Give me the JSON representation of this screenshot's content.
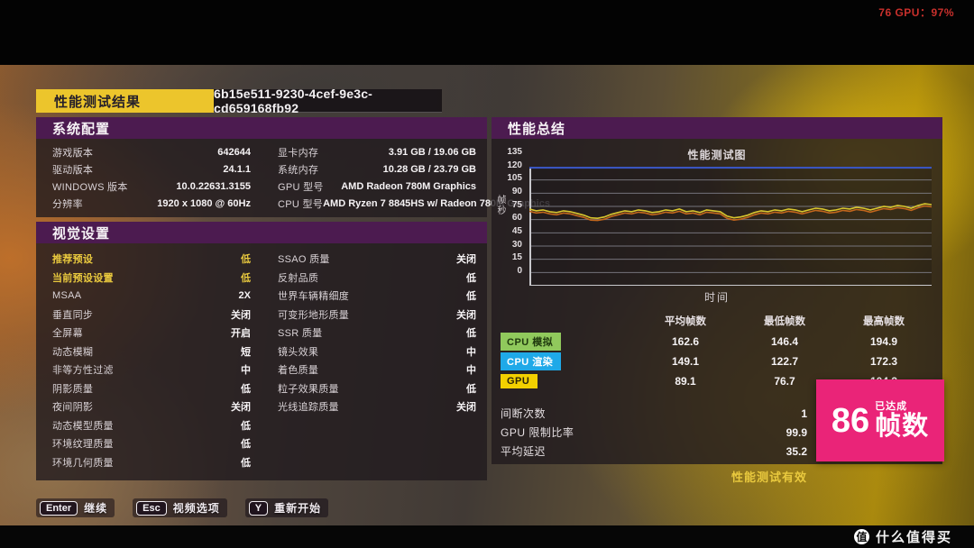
{
  "hud": {
    "gpu_stat": "76 GPU：97%"
  },
  "title_bar": {
    "title": "性能测试结果",
    "session_id": "6b15e511-9230-4cef-9e3c-cd659168fb92"
  },
  "system_config": {
    "header": "系统配置",
    "left_rows": [
      {
        "label": "游戏版本",
        "value": "642644"
      },
      {
        "label": "驱动版本",
        "value": "24.1.1"
      },
      {
        "label": "WINDOWS 版本",
        "value": "10.0.22631.3155"
      },
      {
        "label": "分辨率",
        "value": "1920 x 1080 @ 60Hz"
      }
    ],
    "right_rows": [
      {
        "label": "显卡内存",
        "value": "3.91 GB / 19.06 GB"
      },
      {
        "label": "系统内存",
        "value": "10.28 GB / 23.79 GB"
      },
      {
        "label": "GPU 型号",
        "value": "AMD Radeon 780M Graphics"
      },
      {
        "label": "CPU 型号",
        "value": "AMD Ryzen 7 8845HS w/ Radeon 780M Graphics"
      }
    ]
  },
  "visual_settings": {
    "header": "视觉设置",
    "left_rows": [
      {
        "label": "推荐预设",
        "value": "低",
        "highlight": true
      },
      {
        "label": "当前预设设置",
        "value": "低",
        "highlight": true
      },
      {
        "label": "MSAA",
        "value": "2X"
      },
      {
        "label": "垂直同步",
        "value": "关闭"
      },
      {
        "label": "全屏幕",
        "value": "开启"
      },
      {
        "label": "动态模糊",
        "value": "短"
      },
      {
        "label": "非等方性过滤",
        "value": "中"
      },
      {
        "label": "阴影质量",
        "value": "低"
      },
      {
        "label": "夜间阴影",
        "value": "关闭"
      },
      {
        "label": "动态模型质量",
        "value": "低"
      },
      {
        "label": "环境纹理质量",
        "value": "低"
      },
      {
        "label": "环境几何质量",
        "value": "低"
      }
    ],
    "right_rows": [
      {
        "label": "SSAO 质量",
        "value": "关闭"
      },
      {
        "label": "反射品质",
        "value": "低"
      },
      {
        "label": "世界车辆精细度",
        "value": "低"
      },
      {
        "label": "可变形地形质量",
        "value": "关闭"
      },
      {
        "label": "SSR 质量",
        "value": "低"
      },
      {
        "label": "镜头效果",
        "value": "中"
      },
      {
        "label": "着色质量",
        "value": "中"
      },
      {
        "label": "粒子效果质量",
        "value": "低"
      },
      {
        "label": "光线追踪质量",
        "value": "关闭"
      }
    ]
  },
  "summary": {
    "header": "性能总结",
    "table_headers": [
      "平均帧数",
      "最低帧数",
      "最高帧数"
    ],
    "table_rows": [
      {
        "name": "CPU 模拟",
        "badge_color": "#90c95c",
        "badge_text_color": "#1f3a0e",
        "avg": "162.6",
        "min": "146.4",
        "max": "194.9"
      },
      {
        "name": "CPU 渲染",
        "badge_color": "#1fa9e8",
        "badge_text_color": "#ffffff",
        "avg": "149.1",
        "min": "122.7",
        "max": "172.3"
      },
      {
        "name": "GPU",
        "badge_color": "#f2d000",
        "badge_text_color": "#2a2408",
        "avg": "89.1",
        "min": "76.7",
        "max": "104.3"
      }
    ],
    "stats": [
      {
        "label": "间断次数",
        "value": "1"
      },
      {
        "label": "GPU 限制比率",
        "value": "99.9"
      },
      {
        "label": "平均延迟",
        "value": "35.2"
      }
    ],
    "valid_label": "性能测试有效",
    "badge": {
      "small_label": "已达成",
      "number": "86",
      "unit": "帧数"
    }
  },
  "chart_data": {
    "type": "line",
    "title": "性能测试图",
    "xlabel": "时间",
    "ylabel": "帧秒",
    "ylim": [
      0,
      135
    ],
    "yticks": [
      0,
      15,
      30,
      45,
      60,
      75,
      90,
      105,
      120,
      135
    ],
    "grid": true,
    "legend_position": "below-left",
    "series": [
      {
        "name": "CPU 模拟",
        "color": "#6aa33c",
        "width": 2,
        "avg": 162.6,
        "min": 146.4,
        "max": 194.9,
        "clipped_at_top": true,
        "values": [
          135,
          135,
          135,
          135,
          135,
          135,
          135,
          135,
          135,
          135,
          135,
          135
        ]
      },
      {
        "name": "CPU 渲染",
        "color": "#3a55c0",
        "width": 2.2,
        "avg": 149.1,
        "min": 122.7,
        "max": 172.3,
        "clipped_at_top": true,
        "values": [
          134.5,
          134.8,
          134.2,
          134.7,
          134.9,
          134.4,
          134.8,
          134.3,
          134.9,
          134.6,
          134.2,
          134.8
        ]
      },
      {
        "name": "GPU",
        "color": "#d9c62e",
        "shadow_color": "#c2661c",
        "width": 1.6,
        "avg": 89.1,
        "min": 76.7,
        "max": 104.3,
        "values": [
          87,
          85,
          86,
          84,
          83,
          85,
          84,
          82,
          80,
          77,
          76.5,
          78,
          81,
          83,
          85,
          84,
          86,
          85,
          83,
          84,
          86,
          85,
          87,
          84,
          85,
          83,
          86,
          85,
          84,
          79,
          77,
          78,
          80,
          83,
          85,
          84,
          86,
          85,
          87,
          86,
          84,
          86,
          88,
          87,
          85,
          86,
          88,
          87,
          89,
          88,
          86,
          88,
          90,
          89,
          91,
          90,
          88,
          91,
          93,
          92
        ]
      }
    ]
  },
  "footer": {
    "buttons": [
      {
        "key": "Enter",
        "label": "继续"
      },
      {
        "key": "Esc",
        "label": "视频选项"
      },
      {
        "key": "Y",
        "label": "重新开始"
      }
    ]
  },
  "watermark": {
    "logo_char": "值",
    "text": "什么值得买"
  }
}
